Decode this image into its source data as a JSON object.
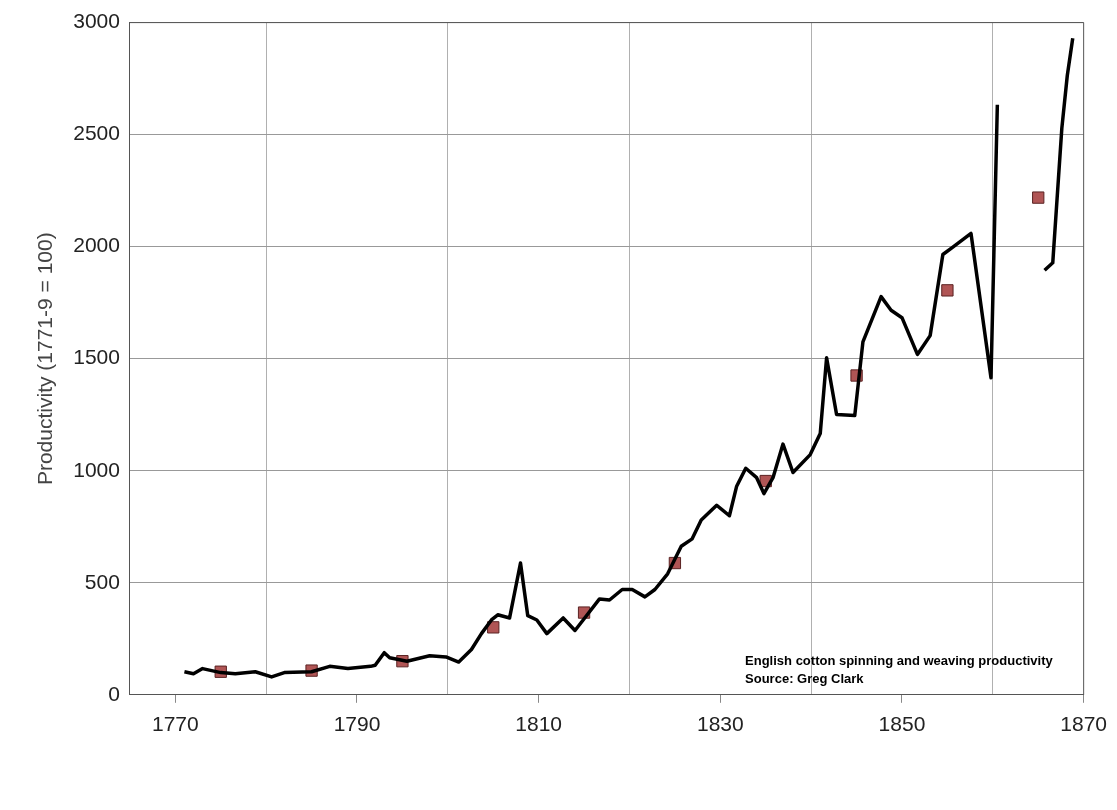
{
  "chart_data": {
    "type": "line",
    "ylabel": "Productivity (1771-9 = 100)",
    "annotations": [
      "English cotton spinning and weaving productivity",
      "Source: Greg Clark"
    ],
    "xlim": [
      1765,
      1870
    ],
    "xticks": [
      1770,
      {
        "value": 1780,
        "label": null
      },
      1790,
      {
        "value": 1800,
        "label": null
      },
      1810,
      {
        "value": 1820,
        "label": null
      },
      1830,
      {
        "value": 1840,
        "label": null
      },
      1850,
      {
        "value": 1860,
        "label": null
      },
      1870
    ],
    "ylim": [
      0,
      3000
    ],
    "yticks": [
      0,
      500,
      1000,
      1500,
      2000,
      2500,
      3000
    ],
    "grid": true,
    "legend": false,
    "series": [
      {
        "color": "#000000",
        "marker": "none",
        "line_style": "solid",
        "x": [
          1771,
          1772,
          1773,
          1775,
          1776.6,
          1778.8,
          1780.6,
          1782,
          1785,
          1787,
          1789,
          1791.5,
          1792,
          1793,
          1793.6,
          1795.5,
          1798,
          1799.8,
          1801.2,
          1802.6,
          1803.7,
          1804.8,
          1805.5,
          1806.8,
          1808,
          1808.8,
          1809.8,
          1810.9,
          1812.7,
          1814,
          1814.9,
          1816.7,
          1817.8,
          1819.2,
          1820.3,
          1821.7,
          1822.8,
          1824.2,
          1825.7,
          1826.9,
          1827.9,
          1829.6,
          1831,
          1831.8,
          1832.8,
          1834,
          1834.8,
          1835.8,
          1836.9,
          1838,
          1839.9,
          1841,
          1841.7,
          1842.8,
          1844.8,
          1845.7,
          1847.7,
          1848.8,
          1850,
          1851.7,
          1853.1,
          1854.5,
          1855.6,
          1857.6,
          1859.8,
          1860.5,
          1863,
          1865.7,
          1866.6,
          1867.6,
          1868.2,
          1868.8
        ],
        "values": [
          103,
          94,
          117,
          99,
          94,
          103,
          80,
          99,
          103,
          127,
          117,
          127,
          132,
          188,
          165,
          150,
          174,
          169,
          146,
          202,
          273,
          334,
          357,
          343,
          588,
          353,
          334,
          273,
          343,
          287,
          334,
          428,
          423,
          470,
          470,
          437,
          470,
          540,
          663,
          696,
          780,
          846,
          799,
          931,
          1011,
          969,
          898,
          969,
          1119,
          992,
          1072,
          1166,
          1504,
          1251,
          1246,
          1575,
          1777,
          1716,
          1683,
          1519,
          1603,
          1965,
          1998,
          2059,
          1415,
          2633,
          null,
          1895,
          1928,
          2529,
          2764,
          2930
        ]
      },
      {
        "type": "scatter",
        "color": "#b05555",
        "marker": "square",
        "x": [
          1775,
          1785,
          1795,
          1805,
          1815,
          1825,
          1835,
          1845,
          1855,
          1865
        ],
        "values": [
          103,
          108,
          150,
          301,
          367,
          588,
          954,
          1425,
          1805,
          2219
        ]
      }
    ]
  }
}
